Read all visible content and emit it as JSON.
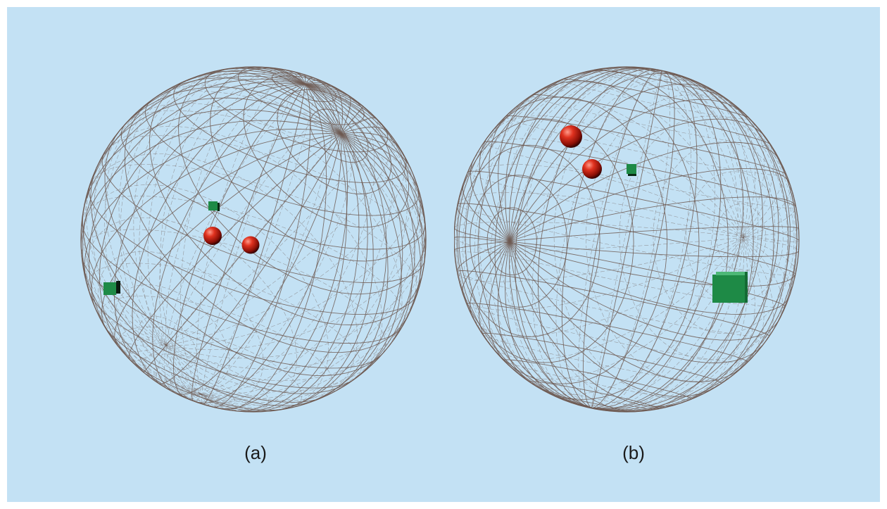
{
  "figure": {
    "background": "#c3e1f4",
    "wire_color": "#6e5a52",
    "sphere_marker_color": "#d42a1c",
    "cube_marker_color": "#1e8a46",
    "panels": [
      {
        "caption": "(a)",
        "markers": [
          {
            "type": "cube-icon",
            "label": ""
          },
          {
            "type": "cube-icon",
            "label": ""
          },
          {
            "type": "sphere-icon",
            "label": ""
          },
          {
            "type": "sphere-icon",
            "label": ""
          }
        ]
      },
      {
        "caption": "(b)",
        "markers": [
          {
            "type": "sphere-icon",
            "label": ""
          },
          {
            "type": "sphere-icon",
            "label": ""
          },
          {
            "type": "cube-icon",
            "label": ""
          },
          {
            "type": "cube-icon",
            "label": ""
          }
        ]
      }
    ]
  }
}
